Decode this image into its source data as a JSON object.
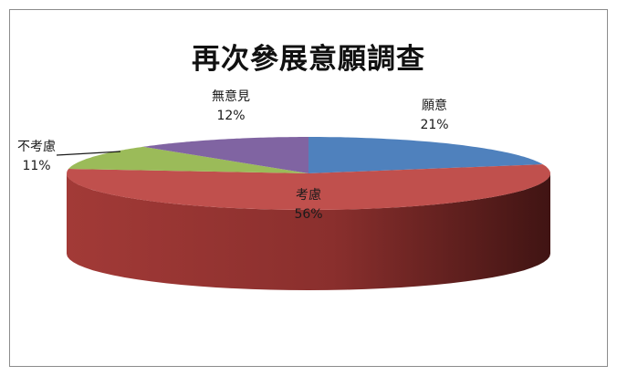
{
  "chart_data": {
    "type": "pie",
    "title": "再次參展意願調查",
    "style": "3d",
    "slices": [
      {
        "label": "願意",
        "value": 21,
        "display": "21%",
        "color": "#4f81bd"
      },
      {
        "label": "考慮",
        "value": 56,
        "display": "56%",
        "color": "#c0504d"
      },
      {
        "label": "不考慮",
        "value": 11,
        "display": "11%",
        "color": "#9bbb59"
      },
      {
        "label": "無意見",
        "value": 12,
        "display": "12%",
        "color": "#8064a2"
      }
    ],
    "start": "top, clockwise",
    "legend": "none (data labels)"
  }
}
